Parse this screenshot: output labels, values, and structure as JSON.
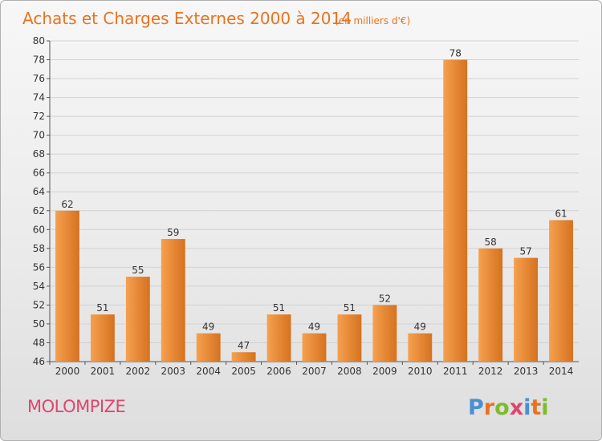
{
  "header": {
    "title": "Achats et Charges Externes 2000 à 2014",
    "unit": "(en milliers d'€)"
  },
  "footer": {
    "commune": "MOLOMPIZE",
    "logo": "Proxiti"
  },
  "colors": {
    "title": "#e8731f",
    "bar_light": "#f6a04f",
    "bar_dark": "#d5721f",
    "commune": "#e0456e",
    "logo_p": "#4a8fd4",
    "logo_r": "#e8731f",
    "logo_o": "#7dbb2c",
    "logo_x": "#e0456e",
    "logo_i": "#4a8fd4",
    "logo_t": "#e8731f",
    "logo_i2": "#7dbb2c"
  },
  "chart_data": {
    "type": "bar",
    "categories": [
      "2000",
      "2001",
      "2002",
      "2003",
      "2004",
      "2005",
      "2006",
      "2007",
      "2008",
      "2009",
      "2010",
      "2011",
      "2012",
      "2013",
      "2014"
    ],
    "values": [
      62,
      51,
      55,
      59,
      49,
      47,
      51,
      49,
      51,
      52,
      49,
      78,
      58,
      57,
      61
    ],
    "ylim": [
      46,
      80
    ],
    "yticks": [
      46,
      48,
      50,
      52,
      54,
      56,
      58,
      60,
      62,
      64,
      66,
      68,
      70,
      72,
      74,
      76,
      78,
      80
    ],
    "grid": true
  }
}
